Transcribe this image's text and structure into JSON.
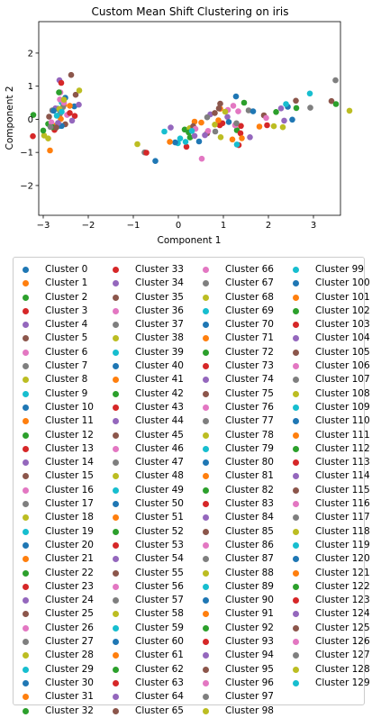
{
  "chart_data": {
    "type": "scatter",
    "title": "Custom Mean Shift Clustering on iris",
    "xlabel": "Component 1",
    "ylabel": "Component 2",
    "xlim": [
      -3.1,
      3.6
    ],
    "ylim": [
      -2.9,
      2.95
    ],
    "xticks": [
      -3,
      -2,
      -1,
      0,
      1,
      2,
      3
    ],
    "xtick_labels": [
      "−3",
      "−2",
      "−1",
      "0",
      "1",
      "2",
      "3"
    ],
    "yticks": [
      -2,
      -1,
      0,
      1,
      2
    ],
    "ytick_labels": [
      "−2",
      "−1",
      "0",
      "1",
      "2"
    ],
    "grid": false,
    "legend_placement": "below",
    "legend_columns": 4,
    "colors": [
      "#1f77b4",
      "#ff7f0e",
      "#2ca02c",
      "#d62728",
      "#9467bd",
      "#8c564b",
      "#e377c2",
      "#7f7f7f",
      "#bcbd22",
      "#17becf"
    ],
    "series": [
      {
        "name": "Cluster 0",
        "points": [
          [
            -2.68,
            0.32
          ]
        ]
      },
      {
        "name": "Cluster 1",
        "points": [
          [
            -2.71,
            -0.18
          ]
        ]
      },
      {
        "name": "Cluster 2",
        "points": [
          [
            -2.89,
            -0.14
          ]
        ]
      },
      {
        "name": "Cluster 3",
        "points": [
          [
            -2.75,
            -0.32
          ]
        ]
      },
      {
        "name": "Cluster 4",
        "points": [
          [
            -2.73,
            0.33
          ]
        ]
      },
      {
        "name": "Cluster 5",
        "points": [
          [
            -2.28,
            0.74
          ]
        ]
      },
      {
        "name": "Cluster 6",
        "points": [
          [
            -2.82,
            -0.09
          ]
        ]
      },
      {
        "name": "Cluster 7",
        "points": [
          [
            -2.63,
            0.16
          ]
        ]
      },
      {
        "name": "Cluster 8",
        "points": [
          [
            -2.89,
            -0.58
          ]
        ]
      },
      {
        "name": "Cluster 9",
        "points": [
          [
            -2.67,
            -0.11
          ]
        ]
      },
      {
        "name": "Cluster 10",
        "points": [
          [
            -2.51,
            0.65
          ]
        ]
      },
      {
        "name": "Cluster 11",
        "points": [
          [
            -2.61,
            0.01
          ]
        ]
      },
      {
        "name": "Cluster 12",
        "points": [
          [
            -2.79,
            -0.24
          ]
        ]
      },
      {
        "name": "Cluster 13",
        "points": [
          [
            -3.23,
            -0.51
          ]
        ]
      },
      {
        "name": "Cluster 14",
        "points": [
          [
            -2.64,
            1.18
          ]
        ]
      },
      {
        "name": "Cluster 15",
        "points": [
          [
            -2.38,
            1.34
          ]
        ]
      },
      {
        "name": "Cluster 16",
        "points": [
          [
            -2.62,
            0.81
          ]
        ]
      },
      {
        "name": "Cluster 17",
        "points": [
          [
            -2.65,
            0.31
          ]
        ]
      },
      {
        "name": "Cluster 18",
        "points": [
          [
            -2.2,
            0.87
          ]
        ]
      },
      {
        "name": "Cluster 19",
        "points": [
          [
            -2.59,
            0.51
          ]
        ]
      },
      {
        "name": "Cluster 20",
        "points": [
          [
            -2.31,
            0.39
          ]
        ]
      },
      {
        "name": "Cluster 21",
        "points": [
          [
            -2.54,
            0.43
          ]
        ]
      },
      {
        "name": "Cluster 22",
        "points": [
          [
            -3.22,
            0.13
          ]
        ]
      },
      {
        "name": "Cluster 23",
        "points": [
          [
            -2.3,
            0.1
          ]
        ]
      },
      {
        "name": "Cluster 24",
        "points": [
          [
            -2.36,
            -0.04
          ]
        ]
      },
      {
        "name": "Cluster 25",
        "points": [
          [
            -2.51,
            -0.15
          ]
        ]
      },
      {
        "name": "Cluster 26",
        "points": [
          [
            -2.47,
            0.13
          ]
        ]
      },
      {
        "name": "Cluster 27",
        "points": [
          [
            -2.56,
            0.37
          ]
        ]
      },
      {
        "name": "Cluster 28",
        "points": [
          [
            -2.64,
            0.31
          ]
        ]
      },
      {
        "name": "Cluster 29",
        "points": [
          [
            -2.63,
            -0.2
          ]
        ]
      },
      {
        "name": "Cluster 30",
        "points": [
          [
            -2.59,
            -0.2
          ]
        ]
      },
      {
        "name": "Cluster 31",
        "points": [
          [
            -2.41,
            0.41
          ]
        ]
      },
      {
        "name": "Cluster 32",
        "points": [
          [
            -2.65,
            0.81
          ]
        ]
      },
      {
        "name": "Cluster 33",
        "points": [
          [
            -2.6,
            1.1
          ]
        ]
      },
      {
        "name": "Cluster 34",
        "points": [
          [
            -2.67,
            -0.11
          ]
        ]
      },
      {
        "name": "Cluster 35",
        "points": [
          [
            -2.87,
            0.08
          ]
        ]
      },
      {
        "name": "Cluster 36",
        "points": [
          [
            -2.63,
            0.6
          ]
        ]
      },
      {
        "name": "Cluster 37",
        "points": [
          [
            -2.8,
            0.27
          ]
        ]
      },
      {
        "name": "Cluster 38",
        "points": [
          [
            -2.98,
            -0.49
          ]
        ]
      },
      {
        "name": "Cluster 39",
        "points": [
          [
            -2.59,
            0.23
          ]
        ]
      },
      {
        "name": "Cluster 40",
        "points": [
          [
            -2.77,
            0.26
          ]
        ]
      },
      {
        "name": "Cluster 41",
        "points": [
          [
            -2.85,
            -0.94
          ]
        ]
      },
      {
        "name": "Cluster 42",
        "points": [
          [
            -3.0,
            -0.34
          ]
        ]
      },
      {
        "name": "Cluster 43",
        "points": [
          [
            -2.41,
            0.19
          ]
        ]
      },
      {
        "name": "Cluster 44",
        "points": [
          [
            -2.21,
            0.44
          ]
        ]
      },
      {
        "name": "Cluster 45",
        "points": [
          [
            -2.71,
            -0.25
          ]
        ]
      },
      {
        "name": "Cluster 46",
        "points": [
          [
            -2.54,
            0.5
          ]
        ]
      },
      {
        "name": "Cluster 47",
        "points": [
          [
            -2.84,
            -0.23
          ]
        ]
      },
      {
        "name": "Cluster 48",
        "points": [
          [
            -2.54,
            0.59
          ]
        ]
      },
      {
        "name": "Cluster 49",
        "points": [
          [
            -2.7,
            0.11
          ]
        ]
      },
      {
        "name": "Cluster 50",
        "points": [
          [
            1.28,
            0.69
          ]
        ]
      },
      {
        "name": "Cluster 51",
        "points": [
          [
            0.93,
            0.32
          ]
        ]
      },
      {
        "name": "Cluster 52",
        "points": [
          [
            1.46,
            0.5
          ]
        ]
      },
      {
        "name": "Cluster 53",
        "points": [
          [
            0.18,
            -0.83
          ]
        ]
      },
      {
        "name": "Cluster 54",
        "points": [
          [
            1.09,
            0.07
          ]
        ]
      },
      {
        "name": "Cluster 55",
        "points": [
          [
            0.64,
            -0.42
          ]
        ]
      },
      {
        "name": "Cluster 56",
        "points": [
          [
            1.1,
            0.28
          ]
        ]
      },
      {
        "name": "Cluster 57",
        "points": [
          [
            -0.75,
            -1.0
          ]
        ]
      },
      {
        "name": "Cluster 58",
        "points": [
          [
            1.04,
            0.23
          ]
        ]
      },
      {
        "name": "Cluster 59",
        "points": [
          [
            -0.01,
            -0.72
          ]
        ]
      },
      {
        "name": "Cluster 60",
        "points": [
          [
            -0.51,
            -1.26
          ]
        ]
      },
      {
        "name": "Cluster 61",
        "points": [
          [
            0.51,
            -0.1
          ]
        ]
      },
      {
        "name": "Cluster 62",
        "points": [
          [
            0.26,
            -0.55
          ]
        ]
      },
      {
        "name": "Cluster 63",
        "points": [
          [
            0.98,
            -0.12
          ]
        ]
      },
      {
        "name": "Cluster 64",
        "points": [
          [
            -0.17,
            -0.25
          ]
        ]
      },
      {
        "name": "Cluster 65",
        "points": [
          [
            0.93,
            0.47
          ]
        ]
      },
      {
        "name": "Cluster 66",
        "points": [
          [
            0.66,
            -0.35
          ]
        ]
      },
      {
        "name": "Cluster 67",
        "points": [
          [
            0.23,
            -0.33
          ]
        ]
      },
      {
        "name": "Cluster 68",
        "points": [
          [
            0.94,
            -0.54
          ]
        ]
      },
      {
        "name": "Cluster 69",
        "points": [
          [
            0.04,
            -0.58
          ]
        ]
      },
      {
        "name": "Cluster 70",
        "points": [
          [
            1.12,
            -0.08
          ]
        ]
      },
      {
        "name": "Cluster 71",
        "points": [
          [
            0.36,
            -0.07
          ]
        ]
      },
      {
        "name": "Cluster 72",
        "points": [
          [
            1.3,
            -0.33
          ]
        ]
      },
      {
        "name": "Cluster 73",
        "points": [
          [
            0.92,
            -0.18
          ]
        ]
      },
      {
        "name": "Cluster 74",
        "points": [
          [
            0.71,
            0.15
          ]
        ]
      },
      {
        "name": "Cluster 75",
        "points": [
          [
            0.9,
            0.33
          ]
        ]
      },
      {
        "name": "Cluster 76",
        "points": [
          [
            1.33,
            0.24
          ]
        ]
      },
      {
        "name": "Cluster 77",
        "points": [
          [
            1.56,
            0.27
          ]
        ]
      },
      {
        "name": "Cluster 78",
        "points": [
          [
            0.81,
            -0.16
          ]
        ]
      },
      {
        "name": "Cluster 79",
        "points": [
          [
            -0.31,
            -0.37
          ]
        ]
      },
      {
        "name": "Cluster 80",
        "points": [
          [
            -0.07,
            -0.7
          ]
        ]
      },
      {
        "name": "Cluster 81",
        "points": [
          [
            -0.19,
            -0.68
          ]
        ]
      },
      {
        "name": "Cluster 82",
        "points": [
          [
            0.14,
            -0.31
          ]
        ]
      },
      {
        "name": "Cluster 83",
        "points": [
          [
            1.38,
            -0.42
          ]
        ]
      },
      {
        "name": "Cluster 84",
        "points": [
          [
            0.59,
            -0.48
          ]
        ]
      },
      {
        "name": "Cluster 85",
        "points": [
          [
            0.81,
            0.19
          ]
        ]
      },
      {
        "name": "Cluster 86",
        "points": [
          [
            1.22,
            0.41
          ]
        ]
      },
      {
        "name": "Cluster 87",
        "points": [
          [
            0.82,
            -0.37
          ]
        ]
      },
      {
        "name": "Cluster 88",
        "points": [
          [
            0.25,
            -0.27
          ]
        ]
      },
      {
        "name": "Cluster 89",
        "points": [
          [
            0.16,
            -0.68
          ]
        ]
      },
      {
        "name": "Cluster 90",
        "points": [
          [
            0.46,
            -0.67
          ]
        ]
      },
      {
        "name": "Cluster 91",
        "points": [
          [
            0.89,
            -0.03
          ]
        ]
      },
      {
        "name": "Cluster 92",
        "points": [
          [
            0.23,
            -0.4
          ]
        ]
      },
      {
        "name": "Cluster 93",
        "points": [
          [
            -0.71,
            -1.01
          ]
        ]
      },
      {
        "name": "Cluster 94",
        "points": [
          [
            0.36,
            -0.5
          ]
        ]
      },
      {
        "name": "Cluster 95",
        "points": [
          [
            0.33,
            -0.21
          ]
        ]
      },
      {
        "name": "Cluster 96",
        "points": [
          [
            0.38,
            -0.29
          ]
        ]
      },
      {
        "name": "Cluster 97",
        "points": [
          [
            0.64,
            0.06
          ]
        ]
      },
      {
        "name": "Cluster 98",
        "points": [
          [
            -0.91,
            -0.75
          ]
        ]
      },
      {
        "name": "Cluster 99",
        "points": [
          [
            0.3,
            -0.35
          ]
        ]
      },
      {
        "name": "Cluster 100",
        "points": [
          [
            2.53,
            -0.01
          ]
        ]
      },
      {
        "name": "Cluster 101",
        "points": [
          [
            1.41,
            -0.57
          ]
        ]
      },
      {
        "name": "Cluster 102",
        "points": [
          [
            2.62,
            0.34
          ]
        ]
      },
      {
        "name": "Cluster 103",
        "points": [
          [
            1.97,
            -0.18
          ]
        ]
      },
      {
        "name": "Cluster 104",
        "points": [
          [
            2.35,
            -0.04
          ]
        ]
      },
      {
        "name": "Cluster 105",
        "points": [
          [
            3.4,
            0.55
          ]
        ]
      },
      {
        "name": "Cluster 106",
        "points": [
          [
            0.52,
            -1.19
          ]
        ]
      },
      {
        "name": "Cluster 107",
        "points": [
          [
            2.93,
            0.35
          ]
        ]
      },
      {
        "name": "Cluster 108",
        "points": [
          [
            2.32,
            -0.24
          ]
        ]
      },
      {
        "name": "Cluster 109",
        "points": [
          [
            2.92,
            0.78
          ]
        ]
      },
      {
        "name": "Cluster 110",
        "points": [
          [
            1.66,
            0.24
          ]
        ]
      },
      {
        "name": "Cluster 111",
        "points": [
          [
            1.8,
            -0.22
          ]
        ]
      },
      {
        "name": "Cluster 112",
        "points": [
          [
            2.17,
            0.22
          ]
        ]
      },
      {
        "name": "Cluster 113",
        "points": [
          [
            1.34,
            -0.78
          ]
        ]
      },
      {
        "name": "Cluster 114",
        "points": [
          [
            1.59,
            -0.54
          ]
        ]
      },
      {
        "name": "Cluster 115",
        "points": [
          [
            1.9,
            0.12
          ]
        ]
      },
      {
        "name": "Cluster 116",
        "points": [
          [
            1.95,
            0.04
          ]
        ]
      },
      {
        "name": "Cluster 117",
        "points": [
          [
            3.49,
            1.18
          ]
        ]
      },
      {
        "name": "Cluster 118",
        "points": [
          [
            3.8,
            0.26
          ]
        ]
      },
      {
        "name": "Cluster 119",
        "points": [
          [
            1.3,
            -0.76
          ]
        ]
      },
      {
        "name": "Cluster 120",
        "points": [
          [
            2.43,
            0.38
          ]
        ]
      },
      {
        "name": "Cluster 121",
        "points": [
          [
            1.2,
            -0.61
          ]
        ]
      },
      {
        "name": "Cluster 122",
        "points": [
          [
            3.5,
            0.46
          ]
        ]
      },
      {
        "name": "Cluster 123",
        "points": [
          [
            1.39,
            -0.2
          ]
        ]
      },
      {
        "name": "Cluster 124",
        "points": [
          [
            2.28,
            0.33
          ]
        ]
      },
      {
        "name": "Cluster 125",
        "points": [
          [
            2.61,
            0.56
          ]
        ]
      },
      {
        "name": "Cluster 126",
        "points": [
          [
            1.26,
            -0.18
          ]
        ]
      },
      {
        "name": "Cluster 127",
        "points": [
          [
            1.29,
            -0.12
          ]
        ]
      },
      {
        "name": "Cluster 128",
        "points": [
          [
            2.12,
            -0.21
          ]
        ]
      },
      {
        "name": "Cluster 129",
        "points": [
          [
            2.39,
            0.46
          ]
        ]
      }
    ]
  }
}
